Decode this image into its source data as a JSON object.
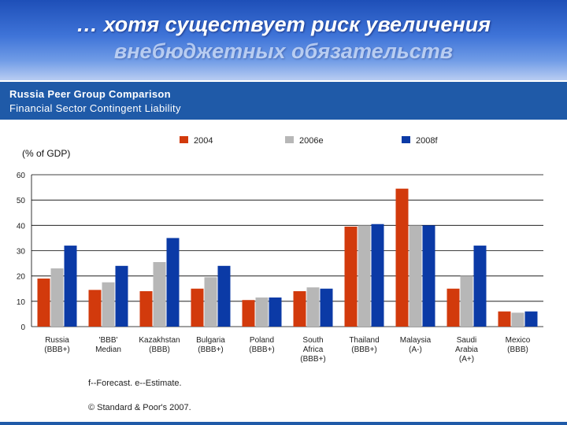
{
  "slide": {
    "title_line1": "… хотя существует риск увеличения",
    "title_line2": "внебюджетных обязательств"
  },
  "banner": {
    "title": "Russia Peer Group Comparison",
    "subtitle": "Financial Sector Contingent Liability"
  },
  "footnotes": {
    "legend_note": "f--Forecast. e--Estimate.",
    "copyright": "© Standard & Poor's 2007."
  },
  "colors": {
    "s2004": "#d23a0c",
    "s2006e": "#b7b7b7",
    "s2008f": "#0b3aa6"
  },
  "chart_data": {
    "type": "bar",
    "ylabel": "(% of GDP)",
    "ylim": [
      0,
      60
    ],
    "yticks": [
      0,
      10,
      20,
      30,
      40,
      50,
      60
    ],
    "grid": true,
    "legend_position": "top",
    "categories": [
      [
        "Russia",
        "(BBB+)"
      ],
      [
        "'BBB'",
        "Median"
      ],
      [
        "Kazakhstan",
        "(BBB)"
      ],
      [
        "Bulgaria",
        "(BBB+)"
      ],
      [
        "Poland",
        "(BBB+)"
      ],
      [
        "South",
        "Africa",
        "(BBB+)"
      ],
      [
        "Thailand",
        "(BBB+)"
      ],
      [
        "Malaysia",
        "(A-)"
      ],
      [
        "Saudi",
        "Arabia",
        "(A+)"
      ],
      [
        "Mexico",
        "(BBB)"
      ]
    ],
    "series": [
      {
        "name": "2004",
        "color": "#d23a0c",
        "values": [
          19,
          14.5,
          14,
          15,
          10.5,
          14,
          39.5,
          54.5,
          15,
          6
        ]
      },
      {
        "name": "2006e",
        "color": "#b7b7b7",
        "values": [
          23,
          17.5,
          25.5,
          19.5,
          11.5,
          15.5,
          40,
          40,
          20,
          5.5
        ]
      },
      {
        "name": "2008f",
        "color": "#0b3aa6",
        "values": [
          32,
          24,
          35,
          24,
          11.5,
          15,
          40.5,
          40,
          32,
          6
        ]
      }
    ]
  }
}
